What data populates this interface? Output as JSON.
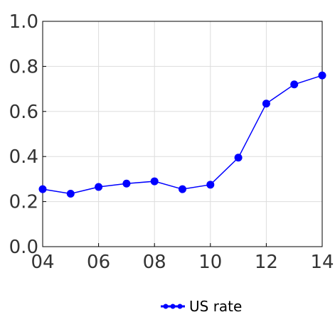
{
  "chart_data": {
    "type": "line",
    "title": "",
    "xlabel": "",
    "ylabel": "",
    "x": [
      2004,
      2005,
      2006,
      2007,
      2008,
      2009,
      2010,
      2011,
      2012,
      2013,
      2014
    ],
    "series": [
      {
        "name": "US rate",
        "values": [
          0.255,
          0.235,
          0.265,
          0.28,
          0.29,
          0.255,
          0.275,
          0.395,
          0.635,
          0.72,
          0.76
        ],
        "color": "#0000ff"
      }
    ],
    "xlim": [
      2004,
      2014
    ],
    "ylim": [
      0.0,
      1.0
    ],
    "x_ticks": [
      {
        "value": 2004,
        "label": "04"
      },
      {
        "value": 2006,
        "label": "06"
      },
      {
        "value": 2008,
        "label": "08"
      },
      {
        "value": 2010,
        "label": "10"
      },
      {
        "value": 2012,
        "label": "12"
      },
      {
        "value": 2014,
        "label": "14"
      }
    ],
    "y_ticks": [
      {
        "value": 0.0,
        "label": "0.0"
      },
      {
        "value": 0.2,
        "label": "0.2"
      },
      {
        "value": 0.4,
        "label": "0.4"
      },
      {
        "value": 0.6,
        "label": "0.6"
      },
      {
        "value": 0.8,
        "label": "0.8"
      },
      {
        "value": 1.0,
        "label": "1.0"
      }
    ],
    "grid": true,
    "legend": "bottom-center",
    "colors": {
      "grid": "#dddddd",
      "axis": "#000000",
      "text": "#333333",
      "series": "#0000ff"
    }
  }
}
